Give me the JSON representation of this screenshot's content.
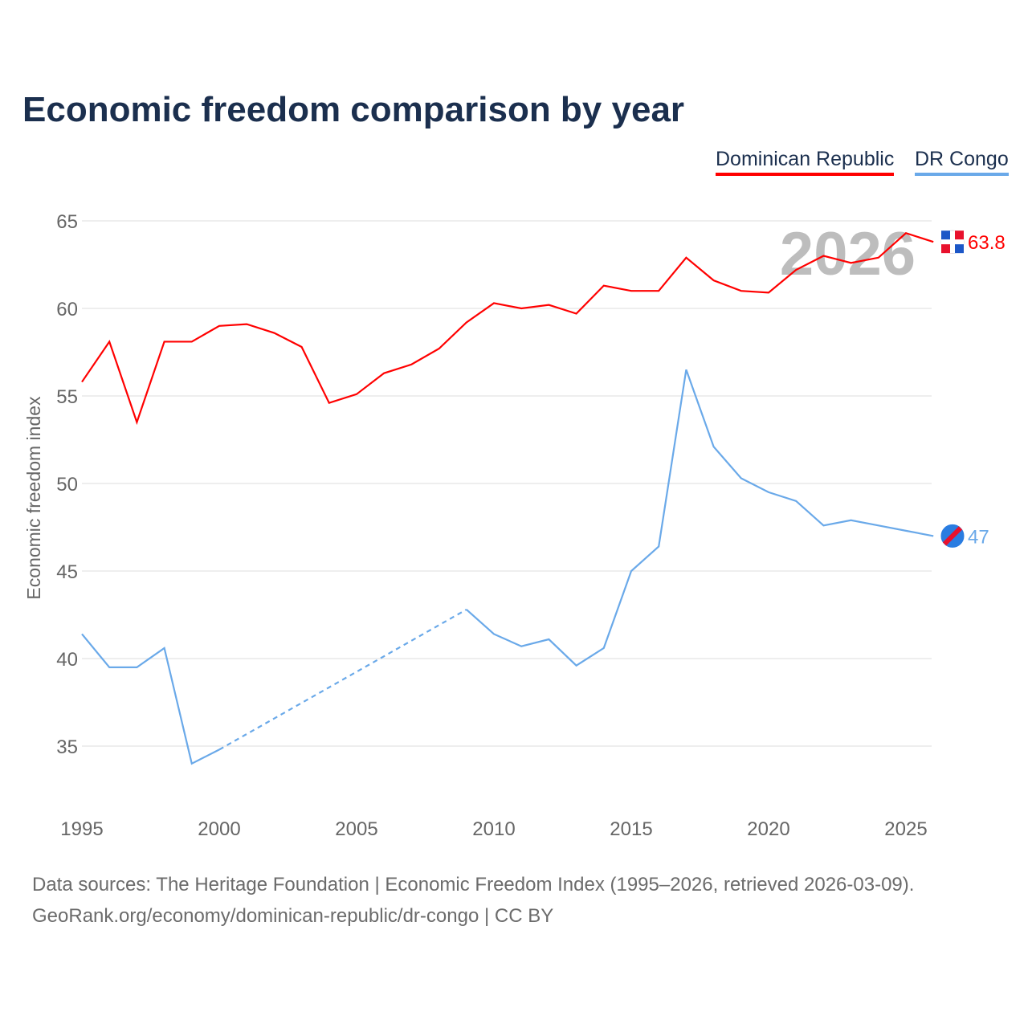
{
  "title": "Economic freedom comparison by year",
  "footer": {
    "line1": "Data sources: The Heritage Foundation | Economic Freedom Index (1995–2026, retrieved 2026-03-09).",
    "line2": "GeoRank.org/economy/dominican-republic/dr-congo | CC BY"
  },
  "chart_data": {
    "type": "line",
    "title": "Economic freedom comparison by year",
    "xlabel": "",
    "ylabel": "Economic freedom index",
    "xlim": [
      1995,
      2026
    ],
    "ylim": [
      31.5,
      66.5
    ],
    "xticks": [
      1995,
      2000,
      2005,
      2010,
      2015,
      2020,
      2025
    ],
    "yticks": [
      35,
      40,
      45,
      50,
      55,
      60,
      65
    ],
    "year_label": "2026",
    "legend_position": "top-right",
    "x": [
      1995,
      1996,
      1997,
      1998,
      1999,
      2000,
      2001,
      2002,
      2003,
      2004,
      2005,
      2006,
      2007,
      2008,
      2009,
      2010,
      2011,
      2012,
      2013,
      2014,
      2015,
      2016,
      2017,
      2018,
      2019,
      2020,
      2021,
      2022,
      2023,
      2024,
      2025,
      2026
    ],
    "series": [
      {
        "name": "Dominican Republic",
        "color": "#ff0000",
        "end_label": "63.8",
        "values": [
          55.8,
          58.1,
          53.5,
          58.1,
          58.1,
          59.0,
          59.1,
          58.6,
          57.8,
          54.6,
          55.1,
          56.3,
          56.8,
          57.7,
          59.2,
          60.3,
          60.0,
          60.2,
          59.7,
          61.3,
          61.0,
          61.0,
          62.9,
          61.6,
          61.0,
          60.9,
          62.2,
          63.0,
          62.6,
          62.9,
          64.3,
          63.8
        ]
      },
      {
        "name": "DR Congo",
        "color": "#6aa9e9",
        "end_label": "47",
        "values": [
          41.4,
          39.5,
          39.5,
          40.6,
          34.0,
          34.8,
          null,
          null,
          null,
          null,
          null,
          null,
          null,
          null,
          42.8,
          41.4,
          40.7,
          41.1,
          39.6,
          40.6,
          45.0,
          46.4,
          56.5,
          52.1,
          50.3,
          49.5,
          49.0,
          47.6,
          47.9,
          47.6,
          47.3,
          47.0
        ]
      }
    ]
  }
}
